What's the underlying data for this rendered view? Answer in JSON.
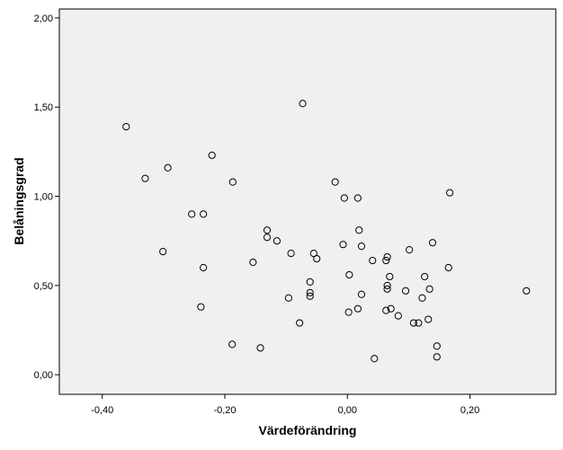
{
  "chart_data": {
    "type": "scatter",
    "title": "",
    "xlabel": "Värdeförändring",
    "ylabel": "Belåningsgrad",
    "xlim": [
      -0.47,
      0.34
    ],
    "ylim": [
      -0.11,
      2.05
    ],
    "xticks": [
      -0.4,
      -0.2,
      0.0,
      0.2
    ],
    "xtick_labels": [
      "-0,40",
      "-0,20",
      "0,00",
      "0,20"
    ],
    "yticks": [
      0.0,
      0.5,
      1.0,
      1.5,
      2.0
    ],
    "ytick_labels": [
      "0,00",
      "0,50",
      "1,00",
      "1,50",
      "2,00"
    ],
    "grid": false,
    "legend": "none",
    "plot_background": "#f0f0f0",
    "marker": "open-circle",
    "series": [
      {
        "points": [
          [
            -0.361,
            1.39
          ],
          [
            -0.073,
            1.52
          ],
          [
            -0.33,
            1.1
          ],
          [
            -0.293,
            1.16
          ],
          [
            -0.221,
            1.23
          ],
          [
            -0.187,
            1.08
          ],
          [
            -0.254,
            0.9
          ],
          [
            -0.235,
            0.9
          ],
          [
            -0.301,
            0.69
          ],
          [
            -0.235,
            0.6
          ],
          [
            -0.239,
            0.38
          ],
          [
            -0.188,
            0.17
          ],
          [
            -0.142,
            0.15
          ],
          [
            -0.131,
            0.81
          ],
          [
            -0.131,
            0.77
          ],
          [
            -0.115,
            0.75
          ],
          [
            -0.154,
            0.63
          ],
          [
            -0.092,
            0.68
          ],
          [
            -0.055,
            0.68
          ],
          [
            -0.05,
            0.65
          ],
          [
            -0.096,
            0.43
          ],
          [
            -0.061,
            0.52
          ],
          [
            -0.061,
            0.46
          ],
          [
            -0.061,
            0.44
          ],
          [
            -0.078,
            0.29
          ],
          [
            -0.02,
            1.08
          ],
          [
            -0.005,
            0.99
          ],
          [
            0.017,
            0.99
          ],
          [
            0.019,
            0.81
          ],
          [
            -0.007,
            0.73
          ],
          [
            0.023,
            0.72
          ],
          [
            0.003,
            0.56
          ],
          [
            0.023,
            0.45
          ],
          [
            0.017,
            0.37
          ],
          [
            0.002,
            0.35
          ],
          [
            0.041,
            0.64
          ],
          [
            0.065,
            0.66
          ],
          [
            0.063,
            0.64
          ],
          [
            0.069,
            0.55
          ],
          [
            0.065,
            0.5
          ],
          [
            0.065,
            0.48
          ],
          [
            0.063,
            0.36
          ],
          [
            0.071,
            0.37
          ],
          [
            0.083,
            0.33
          ],
          [
            0.044,
            0.09
          ],
          [
            0.101,
            0.7
          ],
          [
            0.095,
            0.47
          ],
          [
            0.126,
            0.55
          ],
          [
            0.134,
            0.48
          ],
          [
            0.122,
            0.43
          ],
          [
            0.108,
            0.29
          ],
          [
            0.116,
            0.29
          ],
          [
            0.132,
            0.31
          ],
          [
            0.139,
            0.74
          ],
          [
            0.167,
            1.02
          ],
          [
            0.165,
            0.6
          ],
          [
            0.146,
            0.16
          ],
          [
            0.146,
            0.1
          ],
          [
            0.292,
            0.47
          ]
        ]
      }
    ]
  }
}
